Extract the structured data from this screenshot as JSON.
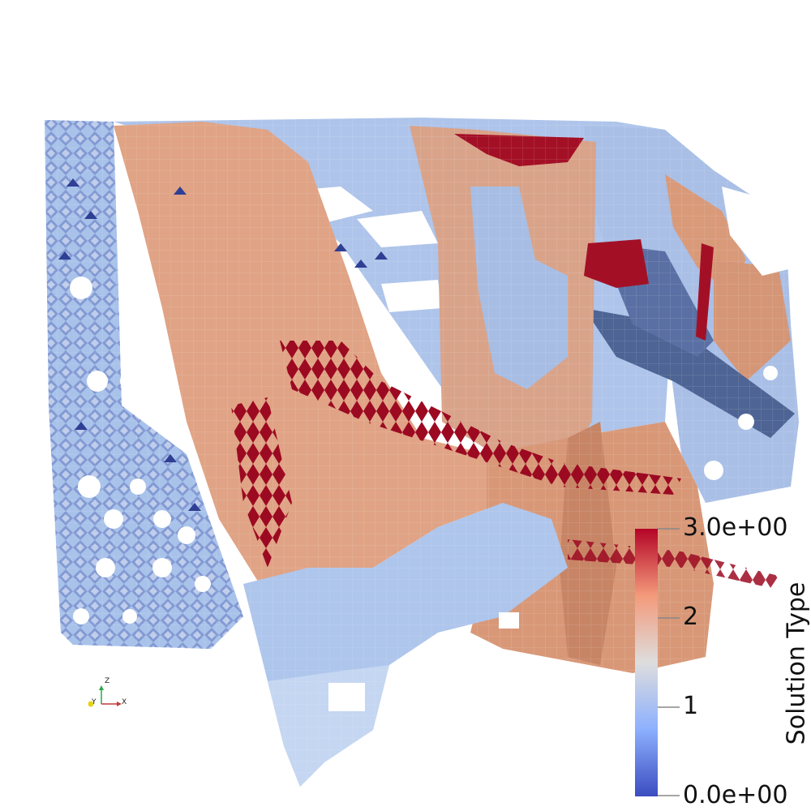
{
  "scalar_bar": {
    "title": "Solution Type",
    "labels": [
      "3.0e+00",
      "2",
      "1",
      "0.0e+00"
    ],
    "range": [
      0,
      3
    ],
    "colormap": [
      "#3b4cc0",
      "#8db0fe",
      "#dddddd",
      "#f49a7b",
      "#b40426"
    ]
  },
  "orientation_axes": {
    "x": "X",
    "y": "Y",
    "z": "Z"
  },
  "colors": {
    "background": "#ffffff",
    "mesh_low": "#3b4cc0",
    "mesh_mid_low": "#9ab7e8",
    "mesh_mid_high": "#e8a27d",
    "mesh_high": "#a5112a"
  }
}
